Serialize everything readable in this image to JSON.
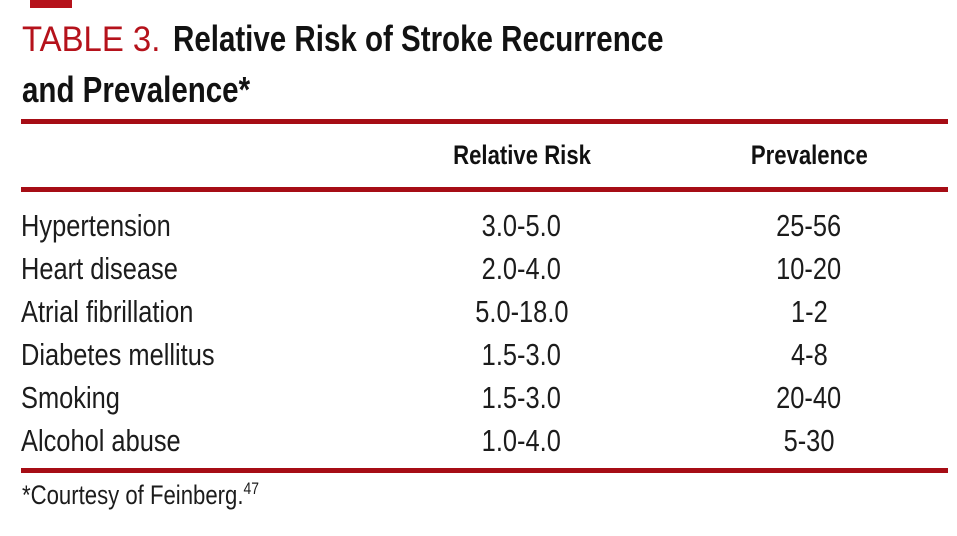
{
  "page": {
    "title_label": "TABLE 3.",
    "title_line1_rest": "Relative Risk of Stroke Recurrence",
    "title_line2": "and Prevalence*"
  },
  "table": {
    "columns": {
      "risk_factor": "",
      "relative_risk": "Relative Risk",
      "prevalence": "Prevalence"
    },
    "rows": [
      {
        "label": "Hypertension",
        "relative_risk": "3.0-5.0",
        "prevalence": "25-56"
      },
      {
        "label": "Heart disease",
        "relative_risk": "2.0-4.0",
        "prevalence": "10-20"
      },
      {
        "label": "Atrial fibrillation",
        "relative_risk": "5.0-18.0",
        "prevalence": "1-2"
      },
      {
        "label": "Diabetes mellitus",
        "relative_risk": "1.5-3.0",
        "prevalence": "4-8"
      },
      {
        "label": "Smoking",
        "relative_risk": "1.5-3.0",
        "prevalence": "20-40"
      },
      {
        "label": "Alcohol abuse",
        "relative_risk": "1.0-4.0",
        "prevalence": "5-30"
      }
    ]
  },
  "footnote": {
    "text": "*Courtesy of Feinberg.",
    "reference": "47"
  },
  "colors": {
    "rule_red": "#a60d15",
    "title_red": "#b5121b",
    "text": "#1c1c1c"
  }
}
